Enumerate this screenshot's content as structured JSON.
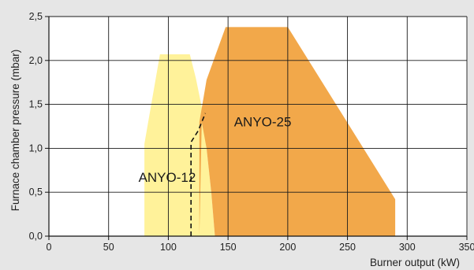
{
  "colors": {
    "background": "#e6e6e6",
    "plot_background": "#ffffff",
    "grid": "#1a1a1a",
    "anyo12_fill": "#fff29a",
    "anyo25_fill": "#f2a84a"
  },
  "chart_data": {
    "type": "area",
    "title": "",
    "xlabel": "Burner output (kW)",
    "ylabel": "Furnace chamber pressure (mbar)",
    "xlim": [
      0,
      350
    ],
    "ylim": [
      0,
      2.5
    ],
    "x_ticks": [
      0,
      50,
      100,
      150,
      200,
      250,
      300,
      350
    ],
    "x_tick_labels": [
      "0",
      "50",
      "100",
      "150",
      "200",
      "250",
      "300",
      "350"
    ],
    "y_ticks": [
      0,
      0.5,
      1.0,
      1.5,
      2.0,
      2.5
    ],
    "y_tick_labels": [
      "0,0",
      "0,5",
      "1,0",
      "1,5",
      "2,0",
      "2,5"
    ],
    "grid": true,
    "series": [
      {
        "name": "ANYO-12",
        "points": [
          [
            80,
            0
          ],
          [
            80,
            1.05
          ],
          [
            93,
            2.07
          ],
          [
            118,
            2.07
          ],
          [
            123,
            1.8
          ],
          [
            128,
            1.47
          ],
          [
            132,
            1.0
          ],
          [
            136,
            0.5
          ],
          [
            139,
            0
          ]
        ]
      },
      {
        "name": "ANYO-25",
        "points": [
          [
            126,
            0
          ],
          [
            126,
            1.3
          ],
          [
            132,
            1.78
          ],
          [
            148,
            2.38
          ],
          [
            200,
            2.38
          ],
          [
            290,
            0.42
          ],
          [
            290,
            0
          ],
          [
            139,
            0
          ],
          [
            136,
            0.5
          ],
          [
            132,
            1.0
          ],
          [
            128,
            1.3
          ]
        ]
      }
    ],
    "boundary_line": {
      "style": "dashed",
      "points": [
        [
          119,
          0
        ],
        [
          119,
          1.07
        ],
        [
          125,
          1.2
        ],
        [
          131,
          1.4
        ]
      ]
    }
  }
}
